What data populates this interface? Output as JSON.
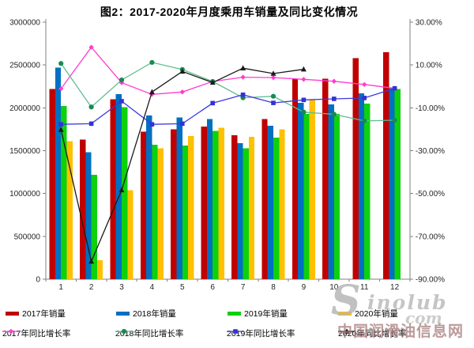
{
  "figure": {
    "title": "图2：2017-2020年月度乘用车销量及同比变化情况"
  },
  "chart_data": {
    "type": "bar+line combo",
    "title": "图2：2017-2020年月度乘用车销量及同比变化情况",
    "categories": [
      "1",
      "2",
      "3",
      "4",
      "5",
      "6",
      "7",
      "8",
      "9",
      "10",
      "11",
      "12"
    ],
    "grid": false,
    "legend_position": "bottom",
    "left_axis": {
      "min": 0,
      "max": 3000000,
      "step": 500000,
      "labels": [
        "0",
        "500000",
        "1000000",
        "1500000",
        "2000000",
        "2500000",
        "3000000"
      ]
    },
    "right_axis": {
      "min": -90,
      "max": 30,
      "step": 20,
      "labels": [
        "30.00%",
        "10.00%",
        "-10.00%",
        "-30.00%",
        "-50.00%",
        "-70.00%",
        "-90.00%"
      ]
    },
    "bar_series": [
      {
        "name": "2017年销量",
        "color": "#C00000",
        "values": [
          2220000,
          1630000,
          2100000,
          1720000,
          1750000,
          1780000,
          1680000,
          1870000,
          2340000,
          2340000,
          2580000,
          2650000
        ]
      },
      {
        "name": "2018年销量",
        "color": "#0070C0",
        "values": [
          2470000,
          1480000,
          2160000,
          1910000,
          1890000,
          1870000,
          1590000,
          1790000,
          2060000,
          2040000,
          2170000,
          2230000
        ]
      },
      {
        "name": "2019年销量",
        "color": "#0ED10E",
        "values": [
          2020000,
          1220000,
          2010000,
          1570000,
          1560000,
          1730000,
          1530000,
          1650000,
          1930000,
          1930000,
          2050000,
          2220000
        ]
      },
      {
        "name": "2020年销量",
        "color": "#FFC000",
        "values": [
          1610000,
          220000,
          1040000,
          1530000,
          1670000,
          1770000,
          1660000,
          1750000,
          2090000,
          null,
          null,
          null
        ]
      }
    ],
    "line_series": [
      {
        "name": "2017年同比增长率",
        "color": "#FF3DCF",
        "marker_color": "#FF3DCF",
        "marker": "diamond",
        "values": [
          -1.1,
          18.3,
          1.7,
          -3.7,
          -2.6,
          2.3,
          4.3,
          4.1,
          3.3,
          2.4,
          0.9,
          -0.9
        ]
      },
      {
        "name": "2018年同比增长率",
        "color": "#5FBE92",
        "marker_color": "#178A52",
        "marker": "circle",
        "values": [
          10.7,
          -9.6,
          3.0,
          11.2,
          7.9,
          2.3,
          -5.3,
          -4.6,
          -12.0,
          -13.0,
          -16.1,
          -15.8
        ]
      },
      {
        "name": "2019年同比增长率",
        "color": "#3A3AE0",
        "marker_color": "#3232D6",
        "marker": "square",
        "values": [
          -17.7,
          -17.4,
          -6.9,
          -17.7,
          -17.4,
          -7.8,
          -3.9,
          -7.7,
          -6.3,
          -5.8,
          -5.4,
          -0.9
        ]
      },
      {
        "name": "2020年同比增长率",
        "color": "#1A1A1A",
        "marker_color": "#1A1A1A",
        "marker": "triangle",
        "values": [
          -20.2,
          -81.7,
          -48.4,
          -2.6,
          7.0,
          1.8,
          8.5,
          6.0,
          8.0,
          null,
          null,
          null
        ]
      }
    ]
  },
  "watermark": {
    "logo_initial": "S",
    "logo_rest": "inolub",
    "logo_domain": "com",
    "site_name": "中国润滑油信息网"
  }
}
